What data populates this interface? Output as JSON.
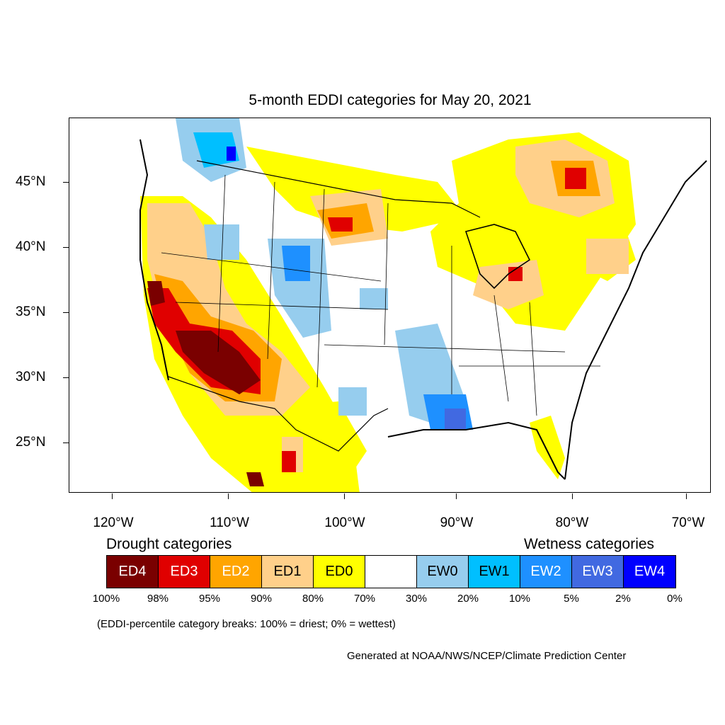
{
  "title": "5-month EDDI categories for May 20, 2021",
  "lat_labels": [
    "45°N",
    "40°N",
    "35°N",
    "30°N",
    "25°N"
  ],
  "lon_labels": [
    "120°W",
    "110°W",
    "100°W",
    "90°W",
    "80°W",
    "70°W"
  ],
  "legend": {
    "drought_header": "Drought categories",
    "wetness_header": "Wetness categories",
    "categories": [
      {
        "label": "ED4",
        "color": "#7a0000",
        "text_color": "#ffffff"
      },
      {
        "label": "ED3",
        "color": "#e00000",
        "text_color": "#ffffff"
      },
      {
        "label": "ED2",
        "color": "#ffa500",
        "text_color": "#ffffff"
      },
      {
        "label": "ED1",
        "color": "#ffd08a",
        "text_color": "#000000"
      },
      {
        "label": "ED0",
        "color": "#ffff00",
        "text_color": "#000000"
      },
      {
        "label": "",
        "color": "#ffffff",
        "text_color": "#000000"
      },
      {
        "label": "EW0",
        "color": "#96cdee",
        "text_color": "#000000"
      },
      {
        "label": "EW1",
        "color": "#00bfff",
        "text_color": "#000000"
      },
      {
        "label": "EW2",
        "color": "#1e90ff",
        "text_color": "#ffffff"
      },
      {
        "label": "EW3",
        "color": "#4169e1",
        "text_color": "#ffffff"
      },
      {
        "label": "EW4",
        "color": "#0000ff",
        "text_color": "#ffffff"
      }
    ],
    "percent_breaks": [
      "100%",
      "98%",
      "95%",
      "90%",
      "80%",
      "70%",
      "30%",
      "20%",
      "10%",
      "5%",
      "2%",
      "0%"
    ]
  },
  "note": "(EDDI-percentile category breaks: 100% = driest; 0% = wettest)",
  "credit": "Generated at NOAA/NWS/NCEP/Climate Prediction Center"
}
